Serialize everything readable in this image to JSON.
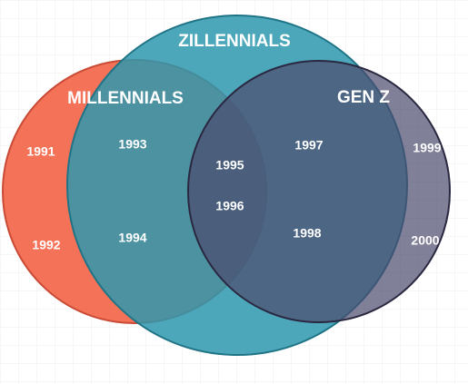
{
  "sets": [
    {
      "label": "MILLENNIALS"
    },
    {
      "label": "ZILLENNIALS"
    },
    {
      "label": "GEN Z"
    }
  ],
  "items": [
    "1991",
    "1992",
    "1993",
    "1994",
    "1995",
    "1996",
    "1997",
    "1998",
    "1999",
    "2000"
  ]
}
